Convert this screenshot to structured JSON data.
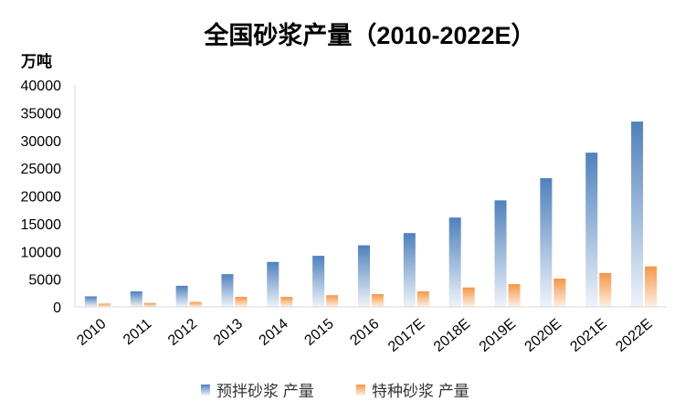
{
  "chart_data": {
    "type": "bar",
    "title": "全国砂浆产量（2010-2022E）",
    "ylabel": "万吨",
    "xlabel": "",
    "ylim": [
      0,
      40000
    ],
    "yticks": [
      0,
      5000,
      10000,
      15000,
      20000,
      25000,
      30000,
      35000,
      40000
    ],
    "grid": false,
    "legend_position": "bottom",
    "categories": [
      "2010",
      "2011",
      "2012",
      "2013",
      "2014",
      "2015",
      "2016",
      "2017E",
      "2018E",
      "2019E",
      "2020E",
      "2021E",
      "2022E"
    ],
    "series": [
      {
        "name": "预拌砂浆 产量",
        "color_top": "#4f81bd",
        "color_bottom": "#eef3fa",
        "values": [
          1900,
          2800,
          3800,
          5900,
          8100,
          9200,
          11100,
          13300,
          16100,
          19200,
          23200,
          27800,
          33400
        ]
      },
      {
        "name": "特种砂浆 产量",
        "color_top": "#f79646",
        "color_bottom": "#fdf0e4",
        "values": [
          600,
          700,
          900,
          1800,
          1800,
          2100,
          2300,
          2800,
          3500,
          4100,
          5100,
          6100,
          7300
        ]
      }
    ]
  }
}
